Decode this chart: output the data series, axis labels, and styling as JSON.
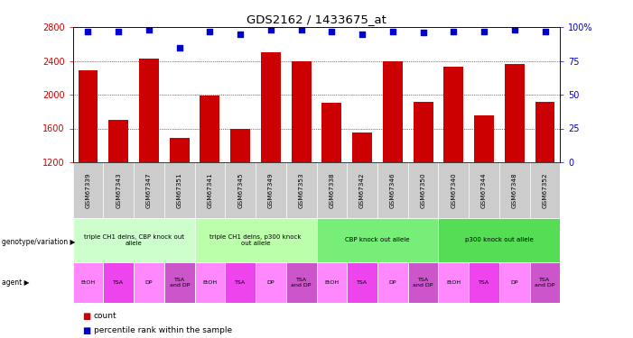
{
  "title": "GDS2162 / 1433675_at",
  "samples": [
    "GSM67339",
    "GSM67343",
    "GSM67347",
    "GSM67351",
    "GSM67341",
    "GSM67345",
    "GSM67349",
    "GSM67353",
    "GSM67338",
    "GSM67342",
    "GSM67346",
    "GSM67350",
    "GSM67340",
    "GSM67344",
    "GSM67348",
    "GSM67352"
  ],
  "counts": [
    2290,
    1700,
    2430,
    1490,
    1990,
    1590,
    2500,
    2390,
    1900,
    1550,
    2400,
    1920,
    2330,
    1760,
    2360,
    1920
  ],
  "percentile_ranks": [
    97,
    97,
    98,
    85,
    97,
    95,
    98,
    98,
    97,
    95,
    97,
    96,
    97,
    97,
    98,
    97
  ],
  "bar_color": "#cc0000",
  "scatter_color": "#0000cc",
  "ylim_left": [
    1200,
    2800
  ],
  "ylim_right": [
    0,
    100
  ],
  "yticks_left": [
    1200,
    1600,
    2000,
    2400,
    2800
  ],
  "yticks_right": [
    0,
    25,
    50,
    75,
    100
  ],
  "genotype_groups": [
    {
      "label": "triple CH1 delns, CBP knock out\nallele",
      "color": "#ccffcc",
      "start": 0,
      "end": 4
    },
    {
      "label": "triple CH1 delns, p300 knock\nout allele",
      "color": "#bbffaa",
      "start": 4,
      "end": 8
    },
    {
      "label": "CBP knock out allele",
      "color": "#77ee77",
      "start": 8,
      "end": 12
    },
    {
      "label": "p300 knock out allele",
      "color": "#55dd55",
      "start": 12,
      "end": 16
    }
  ],
  "agents": [
    "EtOH",
    "TSA",
    "DP",
    "TSA\nand DP",
    "EtOH",
    "TSA",
    "DP",
    "TSA\nand DP",
    "EtOH",
    "TSA",
    "DP",
    "TSA\nand DP",
    "EtOH",
    "TSA",
    "DP",
    "TSA\nand DP"
  ],
  "left_label_color": "#cc0000",
  "right_label_color": "#0000cc",
  "genotype_label": "genotype/variation",
  "agent_label": "agent",
  "grid_yticks": [
    1600,
    2000,
    2400
  ],
  "xtick_bg": "#cccccc"
}
